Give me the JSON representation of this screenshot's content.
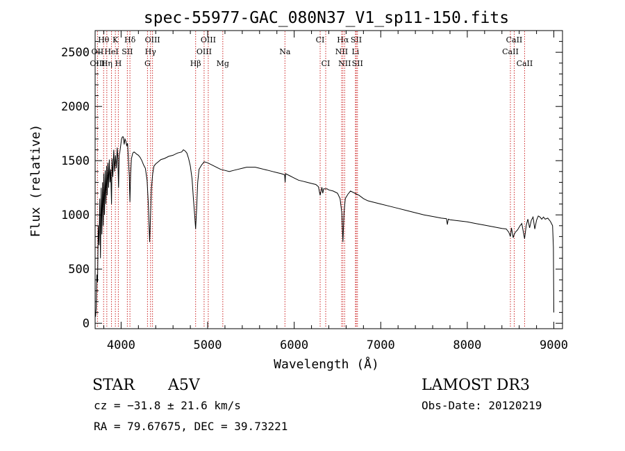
{
  "chart_data": {
    "type": "line",
    "title": "spec-55977-GAC_080N37_V1_sp11-150.fits",
    "xlabel": "Wavelength (Å)",
    "ylabel": "Flux (relative)",
    "xlim": [
      3700,
      9100
    ],
    "ylim": [
      -50,
      2700
    ],
    "xticks": [
      4000,
      5000,
      6000,
      7000,
      8000,
      9000
    ],
    "yticks": [
      0,
      500,
      1000,
      1500,
      2000,
      2500
    ],
    "xtick_labels": [
      "4000",
      "5000",
      "6000",
      "7000",
      "8000",
      "9000"
    ],
    "ytick_labels": [
      "0",
      "500",
      "1000",
      "1500",
      "2000",
      "2500"
    ],
    "grid": false,
    "line_color": "#000000",
    "marker_color": "#cc2222",
    "spectrum": {
      "name": "Flux",
      "x": [
        3705,
        3712,
        3720,
        3728,
        3736,
        3745,
        3754,
        3762,
        3770,
        3778,
        3786,
        3794,
        3800,
        3808,
        3816,
        3824,
        3832,
        3840,
        3848,
        3856,
        3864,
        3872,
        3880,
        3889,
        3895,
        3905,
        3915,
        3925,
        3935,
        3945,
        3955,
        3962,
        3970,
        3978,
        3986,
        3995,
        4005,
        4015,
        4025,
        4035,
        4045,
        4055,
        4065,
        4075,
        4085,
        4095,
        4102,
        4110,
        4120,
        4135,
        4150,
        4165,
        4180,
        4200,
        4220,
        4240,
        4260,
        4280,
        4300,
        4315,
        4330,
        4340,
        4350,
        4365,
        4380,
        4400,
        4430,
        4460,
        4500,
        4550,
        4600,
        4650,
        4700,
        4720,
        4740,
        4760,
        4780,
        4800,
        4820,
        4835,
        4850,
        4861,
        4872,
        4885,
        4900,
        4930,
        4960,
        5000,
        5050,
        5100,
        5150,
        5200,
        5250,
        5300,
        5350,
        5400,
        5450,
        5500,
        5550,
        5600,
        5650,
        5700,
        5750,
        5800,
        5850,
        5890,
        5895,
        5900,
        5950,
        6000,
        6050,
        6100,
        6150,
        6200,
        6250,
        6280,
        6300,
        6320,
        6330,
        6340,
        6380,
        6400,
        6450,
        6500,
        6530,
        6550,
        6563,
        6576,
        6590,
        6620,
        6650,
        6700,
        6750,
        6800,
        6850,
        6900,
        7000,
        7100,
        7200,
        7300,
        7400,
        7500,
        7600,
        7700,
        7760,
        7770,
        7780,
        7800,
        7900,
        8000,
        8100,
        8200,
        8300,
        8400,
        8450,
        8480,
        8498,
        8510,
        8530,
        8542,
        8555,
        8580,
        8610,
        8630,
        8662,
        8680,
        8700,
        8720,
        8740,
        8760,
        8780,
        8800,
        8820,
        8840,
        8860,
        8880,
        8900,
        8930,
        8960,
        8985,
        8995,
        9000
      ],
      "y": [
        60,
        140,
        450,
        380,
        900,
        720,
        1150,
        600,
        1250,
        820,
        1300,
        900,
        1380,
        1000,
        1410,
        1100,
        1450,
        1180,
        1480,
        1250,
        1510,
        1300,
        1420,
        1100,
        1520,
        1350,
        1600,
        1400,
        1550,
        1430,
        1620,
        1520,
        1250,
        1550,
        1580,
        1640,
        1700,
        1720,
        1720,
        1650,
        1700,
        1680,
        1640,
        1660,
        1500,
        1360,
        1120,
        1380,
        1520,
        1570,
        1580,
        1570,
        1560,
        1550,
        1530,
        1500,
        1460,
        1430,
        1320,
        1100,
        750,
        1000,
        1240,
        1380,
        1450,
        1470,
        1490,
        1510,
        1520,
        1540,
        1550,
        1570,
        1580,
        1600,
        1590,
        1570,
        1520,
        1450,
        1330,
        1150,
        1000,
        870,
        1050,
        1300,
        1420,
        1460,
        1490,
        1480,
        1460,
        1440,
        1420,
        1410,
        1400,
        1410,
        1420,
        1430,
        1440,
        1440,
        1440,
        1430,
        1420,
        1410,
        1400,
        1390,
        1380,
        1370,
        1300,
        1380,
        1360,
        1340,
        1320,
        1310,
        1300,
        1290,
        1280,
        1260,
        1180,
        1255,
        1200,
        1240,
        1240,
        1230,
        1220,
        1200,
        1150,
        1020,
        750,
        1020,
        1150,
        1190,
        1220,
        1200,
        1180,
        1150,
        1130,
        1120,
        1100,
        1080,
        1060,
        1040,
        1020,
        1000,
        985,
        970,
        965,
        910,
        960,
        955,
        945,
        935,
        920,
        905,
        890,
        875,
        870,
        840,
        800,
        880,
        790,
        820,
        840,
        860,
        900,
        920,
        780,
        900,
        960,
        880,
        950,
        980,
        870,
        950,
        990,
        980,
        960,
        980,
        960,
        970,
        940,
        900,
        700,
        100
      ]
    },
    "line_markers": [
      {
        "label": "Hθ",
        "wl": 3798,
        "row": 0
      },
      {
        "label": "K",
        "wl": 3934,
        "row": 0
      },
      {
        "label": "Hδ",
        "wl": 4102,
        "row": 0
      },
      {
        "label": "OIII",
        "wl": 4363,
        "row": 0
      },
      {
        "label": "OIII",
        "wl": 5007,
        "row": 0
      },
      {
        "label": "CI",
        "wl": 6300,
        "row": 0
      },
      {
        "label": "Hα",
        "wl": 6563,
        "row": 0
      },
      {
        "label": "SII",
        "wl": 6717,
        "row": 0
      },
      {
        "label": "CaII",
        "wl": 8542,
        "row": 0
      },
      {
        "label": "OII",
        "wl": 3727,
        "row": 1
      },
      {
        "label": "HeI",
        "wl": 3889,
        "row": 1
      },
      {
        "label": "SII",
        "wl": 4072,
        "row": 1
      },
      {
        "label": "Hγ",
        "wl": 4340,
        "row": 1
      },
      {
        "label": "OIII",
        "wl": 4959,
        "row": 1
      },
      {
        "label": "Na",
        "wl": 5893,
        "row": 1
      },
      {
        "label": "NII",
        "wl": 6548,
        "row": 1
      },
      {
        "label": "Li",
        "wl": 6708,
        "row": 1
      },
      {
        "label": "CaII",
        "wl": 8498,
        "row": 1
      },
      {
        "label": "OIII",
        "wl": 3727,
        "row": 2
      },
      {
        "label": "Hη",
        "wl": 3835,
        "row": 2
      },
      {
        "label": "H",
        "wl": 3968,
        "row": 2
      },
      {
        "label": "G",
        "wl": 4305,
        "row": 2
      },
      {
        "label": "Hβ",
        "wl": 4861,
        "row": 2
      },
      {
        "label": "Mg",
        "wl": 5175,
        "row": 2
      },
      {
        "label": "CI",
        "wl": 6364,
        "row": 2
      },
      {
        "label": "NII",
        "wl": 6583,
        "row": 2
      },
      {
        "label": "SII",
        "wl": 6731,
        "row": 2
      },
      {
        "label": "CaII",
        "wl": 8662,
        "row": 2
      }
    ]
  },
  "footer": {
    "object_class": "STAR",
    "subclass": "A5V",
    "survey": "LAMOST DR3",
    "redshift": "cz = −31.8 ± 21.6 km/s",
    "obs_date": "Obs-Date: 20120219",
    "coords": "RA =  79.67675, DEC =  39.73221"
  }
}
